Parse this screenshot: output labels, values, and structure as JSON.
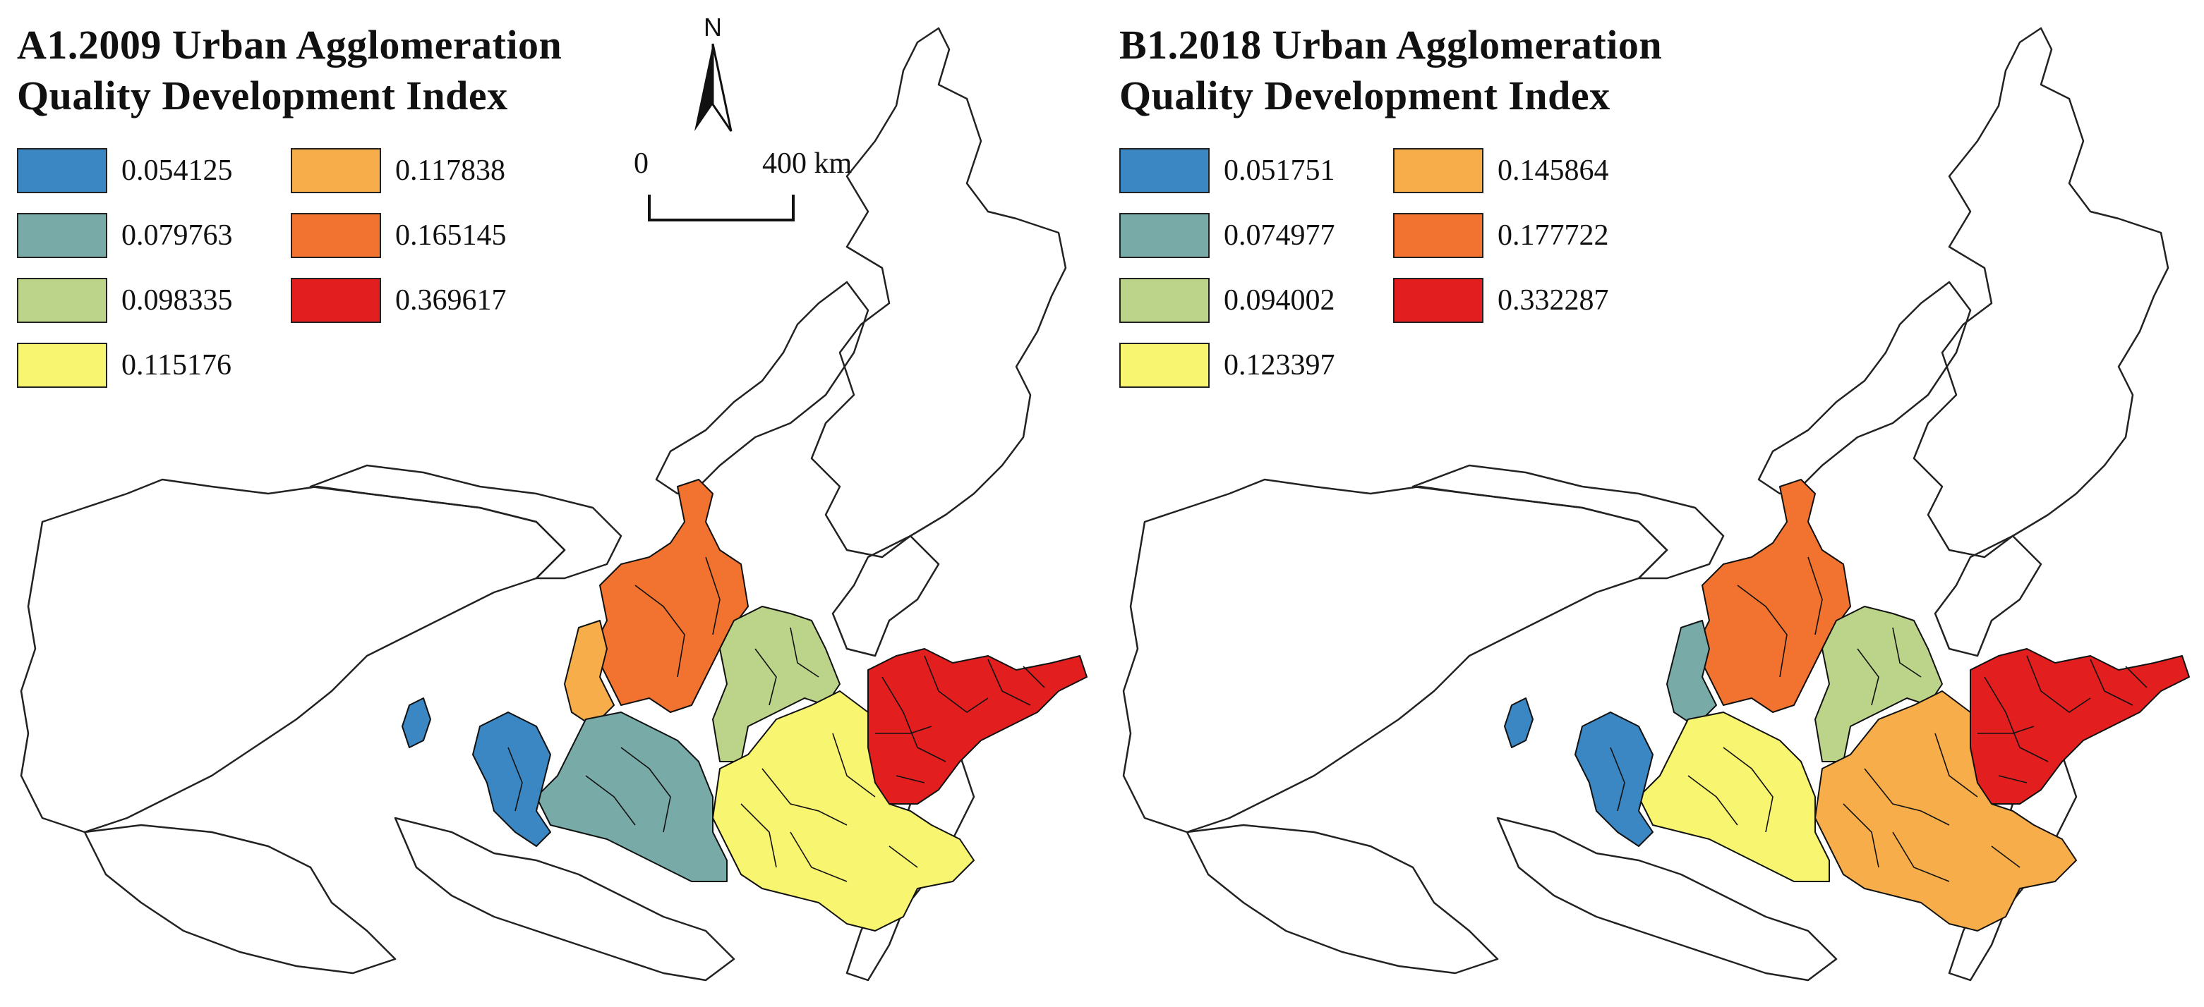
{
  "panels": [
    {
      "title_line1": "A1.2009 Urban Agglomeration",
      "title_line2": "Quality Development Index",
      "legend": [
        {
          "label": "0.054125",
          "color": "#3a87c4"
        },
        {
          "label": "0.117838",
          "color": "#f7ae4a"
        },
        {
          "label": "0.079763",
          "color": "#78aba8"
        },
        {
          "label": "0.165145",
          "color": "#f27330"
        },
        {
          "label": "0.098335",
          "color": "#bcd48a"
        },
        {
          "label": "0.369617",
          "color": "#e31e1e"
        },
        {
          "label": "0.115176",
          "color": "#f8f570"
        }
      ]
    },
    {
      "title_line1": "B1.2018 Urban Agglomeration",
      "title_line2": "Quality Development Index",
      "legend": [
        {
          "label": "0.051751",
          "color": "#3a87c4"
        },
        {
          "label": "0.145864",
          "color": "#f7ae4a"
        },
        {
          "label": "0.074977",
          "color": "#78aba8"
        },
        {
          "label": "0.177722",
          "color": "#f27330"
        },
        {
          "label": "0.094002",
          "color": "#bcd48a"
        },
        {
          "label": "0.332287",
          "color": "#e31e1e"
        },
        {
          "label": "0.123397",
          "color": "#f8f570"
        }
      ]
    }
  ],
  "north_arrow": {
    "letter": "N"
  },
  "scale_bar": {
    "zero": "0",
    "end": "400 km"
  }
}
